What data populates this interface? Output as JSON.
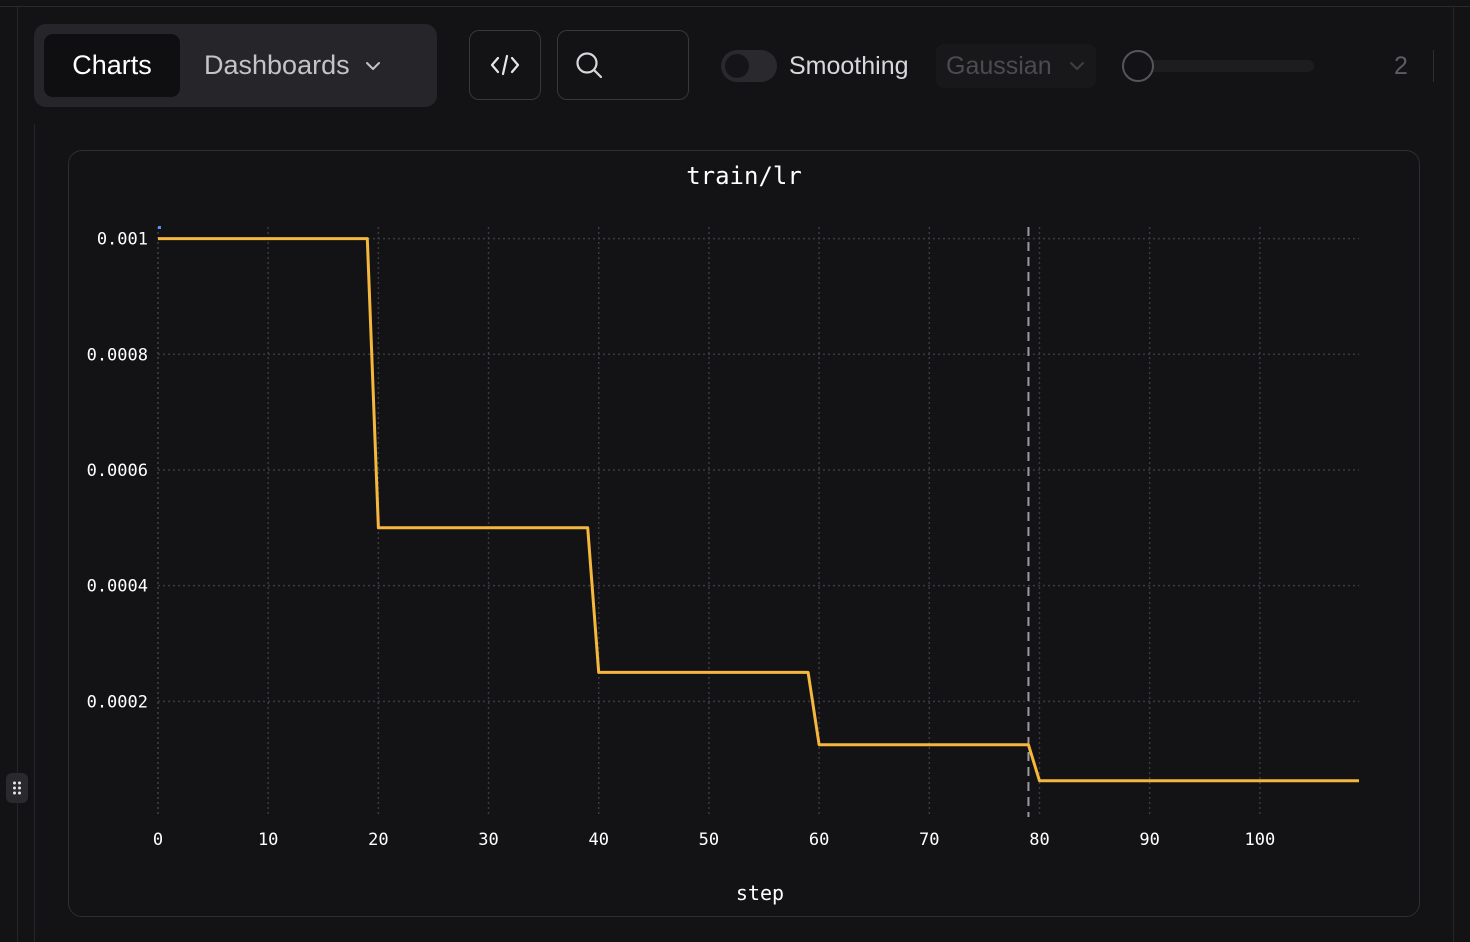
{
  "toolbar": {
    "tab_charts": "Charts",
    "tab_dashboards": "Dashboards",
    "code_icon": "code-icon",
    "search_icon": "search-icon",
    "smoothing_label": "Smoothing",
    "smoothing_enabled": false,
    "smoothing_method": "Gaussian",
    "smoothing_value": "2"
  },
  "colors": {
    "background": "#131315",
    "line": "#F5B73D",
    "accent_marker": "#5b8cff"
  },
  "chart_data": {
    "type": "line",
    "title": "train/lr",
    "xlabel": "step",
    "ylabel": "",
    "xlim": [
      0,
      109
    ],
    "ylim": [
      0,
      0.00102
    ],
    "x_ticks": [
      0,
      10,
      20,
      30,
      40,
      50,
      60,
      70,
      80,
      90,
      100
    ],
    "y_ticks": [
      0.0002,
      0.0004,
      0.0006,
      0.0008,
      0.001
    ],
    "y_tick_labels": [
      "0.0002",
      "0.0004",
      "0.0006",
      "0.0008",
      "0.001"
    ],
    "grid": true,
    "cursor_x": 79,
    "series": [
      {
        "x": [
          0,
          19,
          20,
          39,
          40,
          59,
          60,
          79,
          80,
          109
        ],
        "y": [
          0.001,
          0.001,
          0.0005,
          0.0005,
          0.00025,
          0.00025,
          0.000125,
          0.000125,
          6.25e-05,
          6.25e-05
        ]
      }
    ]
  }
}
